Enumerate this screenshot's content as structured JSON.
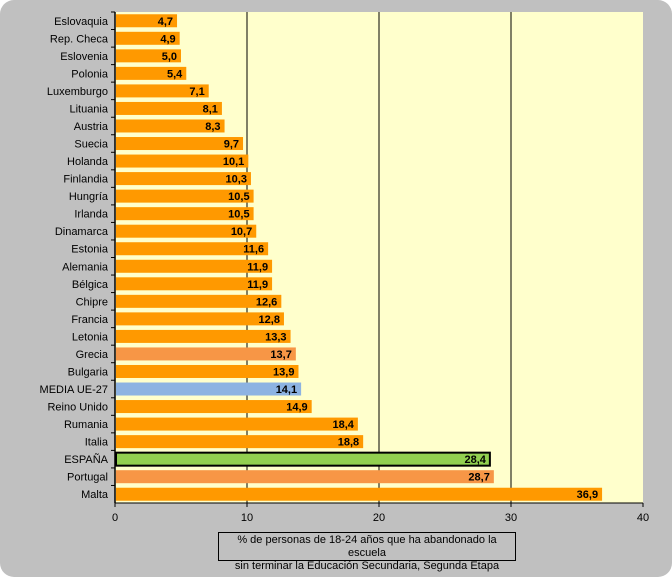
{
  "chart_data": {
    "type": "bar",
    "orientation": "horizontal",
    "title": "",
    "xlabel": "% de personas de 18-24 años que ha abandonado la escuela sin terminar la Educación Secundaria, Segunda Etapa",
    "xlabel_lines": [
      "% de personas de 18-24 años que ha abandonado la escuela",
      "sin terminar la Educación Secundaria, Segunda Etapa"
    ],
    "ylabel": "",
    "xlim": [
      0,
      40
    ],
    "xticks": [
      0,
      10,
      20,
      30,
      40
    ],
    "grid": true,
    "categories": [
      "Eslovaquia",
      "Rep. Checa",
      "Eslovenia",
      "Polonia",
      "Luxemburgo",
      "Lituania",
      "Austria",
      "Suecia",
      "Holanda",
      "Finlandia",
      "Hungría",
      "Irlanda",
      "Dinamarca",
      "Estonia",
      "Alemania",
      "Bélgica",
      "Chipre",
      "Francia",
      "Letonia",
      "Grecia",
      "Bulgaria",
      "MEDIA UE-27",
      "Reino Unido",
      "Rumania",
      "Italia",
      "ESPAÑA",
      "Portugal",
      "Malta"
    ],
    "values": [
      4.7,
      4.9,
      5.0,
      5.4,
      7.1,
      8.1,
      8.3,
      9.7,
      10.1,
      10.3,
      10.5,
      10.5,
      10.7,
      11.6,
      11.9,
      11.9,
      12.6,
      12.8,
      13.3,
      13.7,
      13.9,
      14.1,
      14.9,
      18.4,
      18.8,
      28.4,
      28.7,
      36.9
    ],
    "labels": [
      "4,7",
      "4,9",
      "5,0",
      "5,4",
      "7,1",
      "8,1",
      "8,3",
      "9,7",
      "10,1",
      "10,3",
      "10,5",
      "10,5",
      "10,7",
      "11,6",
      "11,9",
      "11,9",
      "12,6",
      "12,8",
      "13,3",
      "13,7",
      "13,9",
      "14,1",
      "14,9",
      "18,4",
      "18,8",
      "28,4",
      "28,7",
      "36,9"
    ],
    "colors": {
      "default": "#ff9900",
      "Grecia": "#f79646",
      "Portugal": "#f79646",
      "MEDIA UE-27": "#8db3e2",
      "ESPAÑA": "#92d050"
    },
    "plot_background": "#ffffcc"
  }
}
